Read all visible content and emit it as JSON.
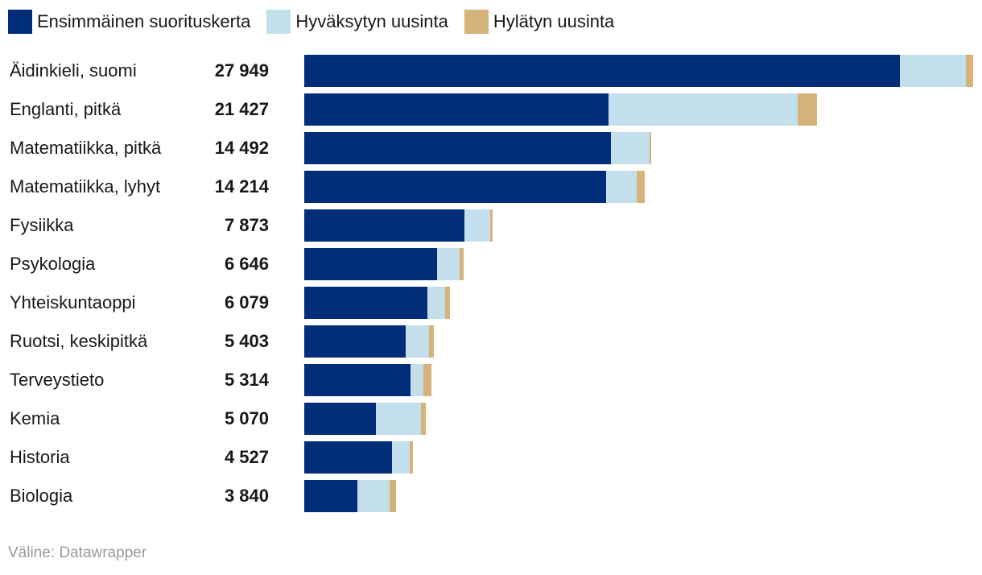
{
  "legend": {
    "items": [
      {
        "label": "Ensimmäinen suorituskerta",
        "color": "#022d79"
      },
      {
        "label": "Hyväksytyn uusinta",
        "color": "#c2dfeb"
      },
      {
        "label": "Hylätyn uusinta",
        "color": "#d6b37b"
      }
    ]
  },
  "source": "Väline: Datawrapper",
  "chart_data": {
    "type": "bar",
    "orientation": "horizontal",
    "stacked": true,
    "xlim": [
      0,
      27949
    ],
    "categories": [
      "Äidinkieli, suomi",
      "Englanti, pitkä",
      "Matematiikka, pitkä",
      "Matematiikka, lyhyt",
      "Fysiikka",
      "Psykologia",
      "Yhteiskuntaoppi",
      "Ruotsi, keskipitkä",
      "Terveystieto",
      "Kemia",
      "Historia",
      "Biologia"
    ],
    "totals": [
      "27 949",
      "21 427",
      "14 492",
      "14 214",
      "7 873",
      "6 646",
      "6 079",
      "5 403",
      "5 314",
      "5 070",
      "4 527",
      "3 840"
    ],
    "series": [
      {
        "name": "Ensimmäinen suorituskerta",
        "color": "#022d79",
        "values": [
          24900,
          12700,
          12830,
          12620,
          6690,
          5540,
          5130,
          4250,
          4450,
          2980,
          3660,
          2230
        ]
      },
      {
        "name": "Hyväksytyn uusinta",
        "color": "#c2dfeb",
        "values": [
          2760,
          7930,
          1600,
          1260,
          1070,
          950,
          740,
          950,
          540,
          1890,
          760,
          1350
        ]
      },
      {
        "name": "Hylätyn uusinta",
        "color": "#d6b37b",
        "values": [
          289,
          797,
          62,
          334,
          113,
          156,
          209,
          203,
          324,
          200,
          107,
          260
        ]
      }
    ]
  }
}
